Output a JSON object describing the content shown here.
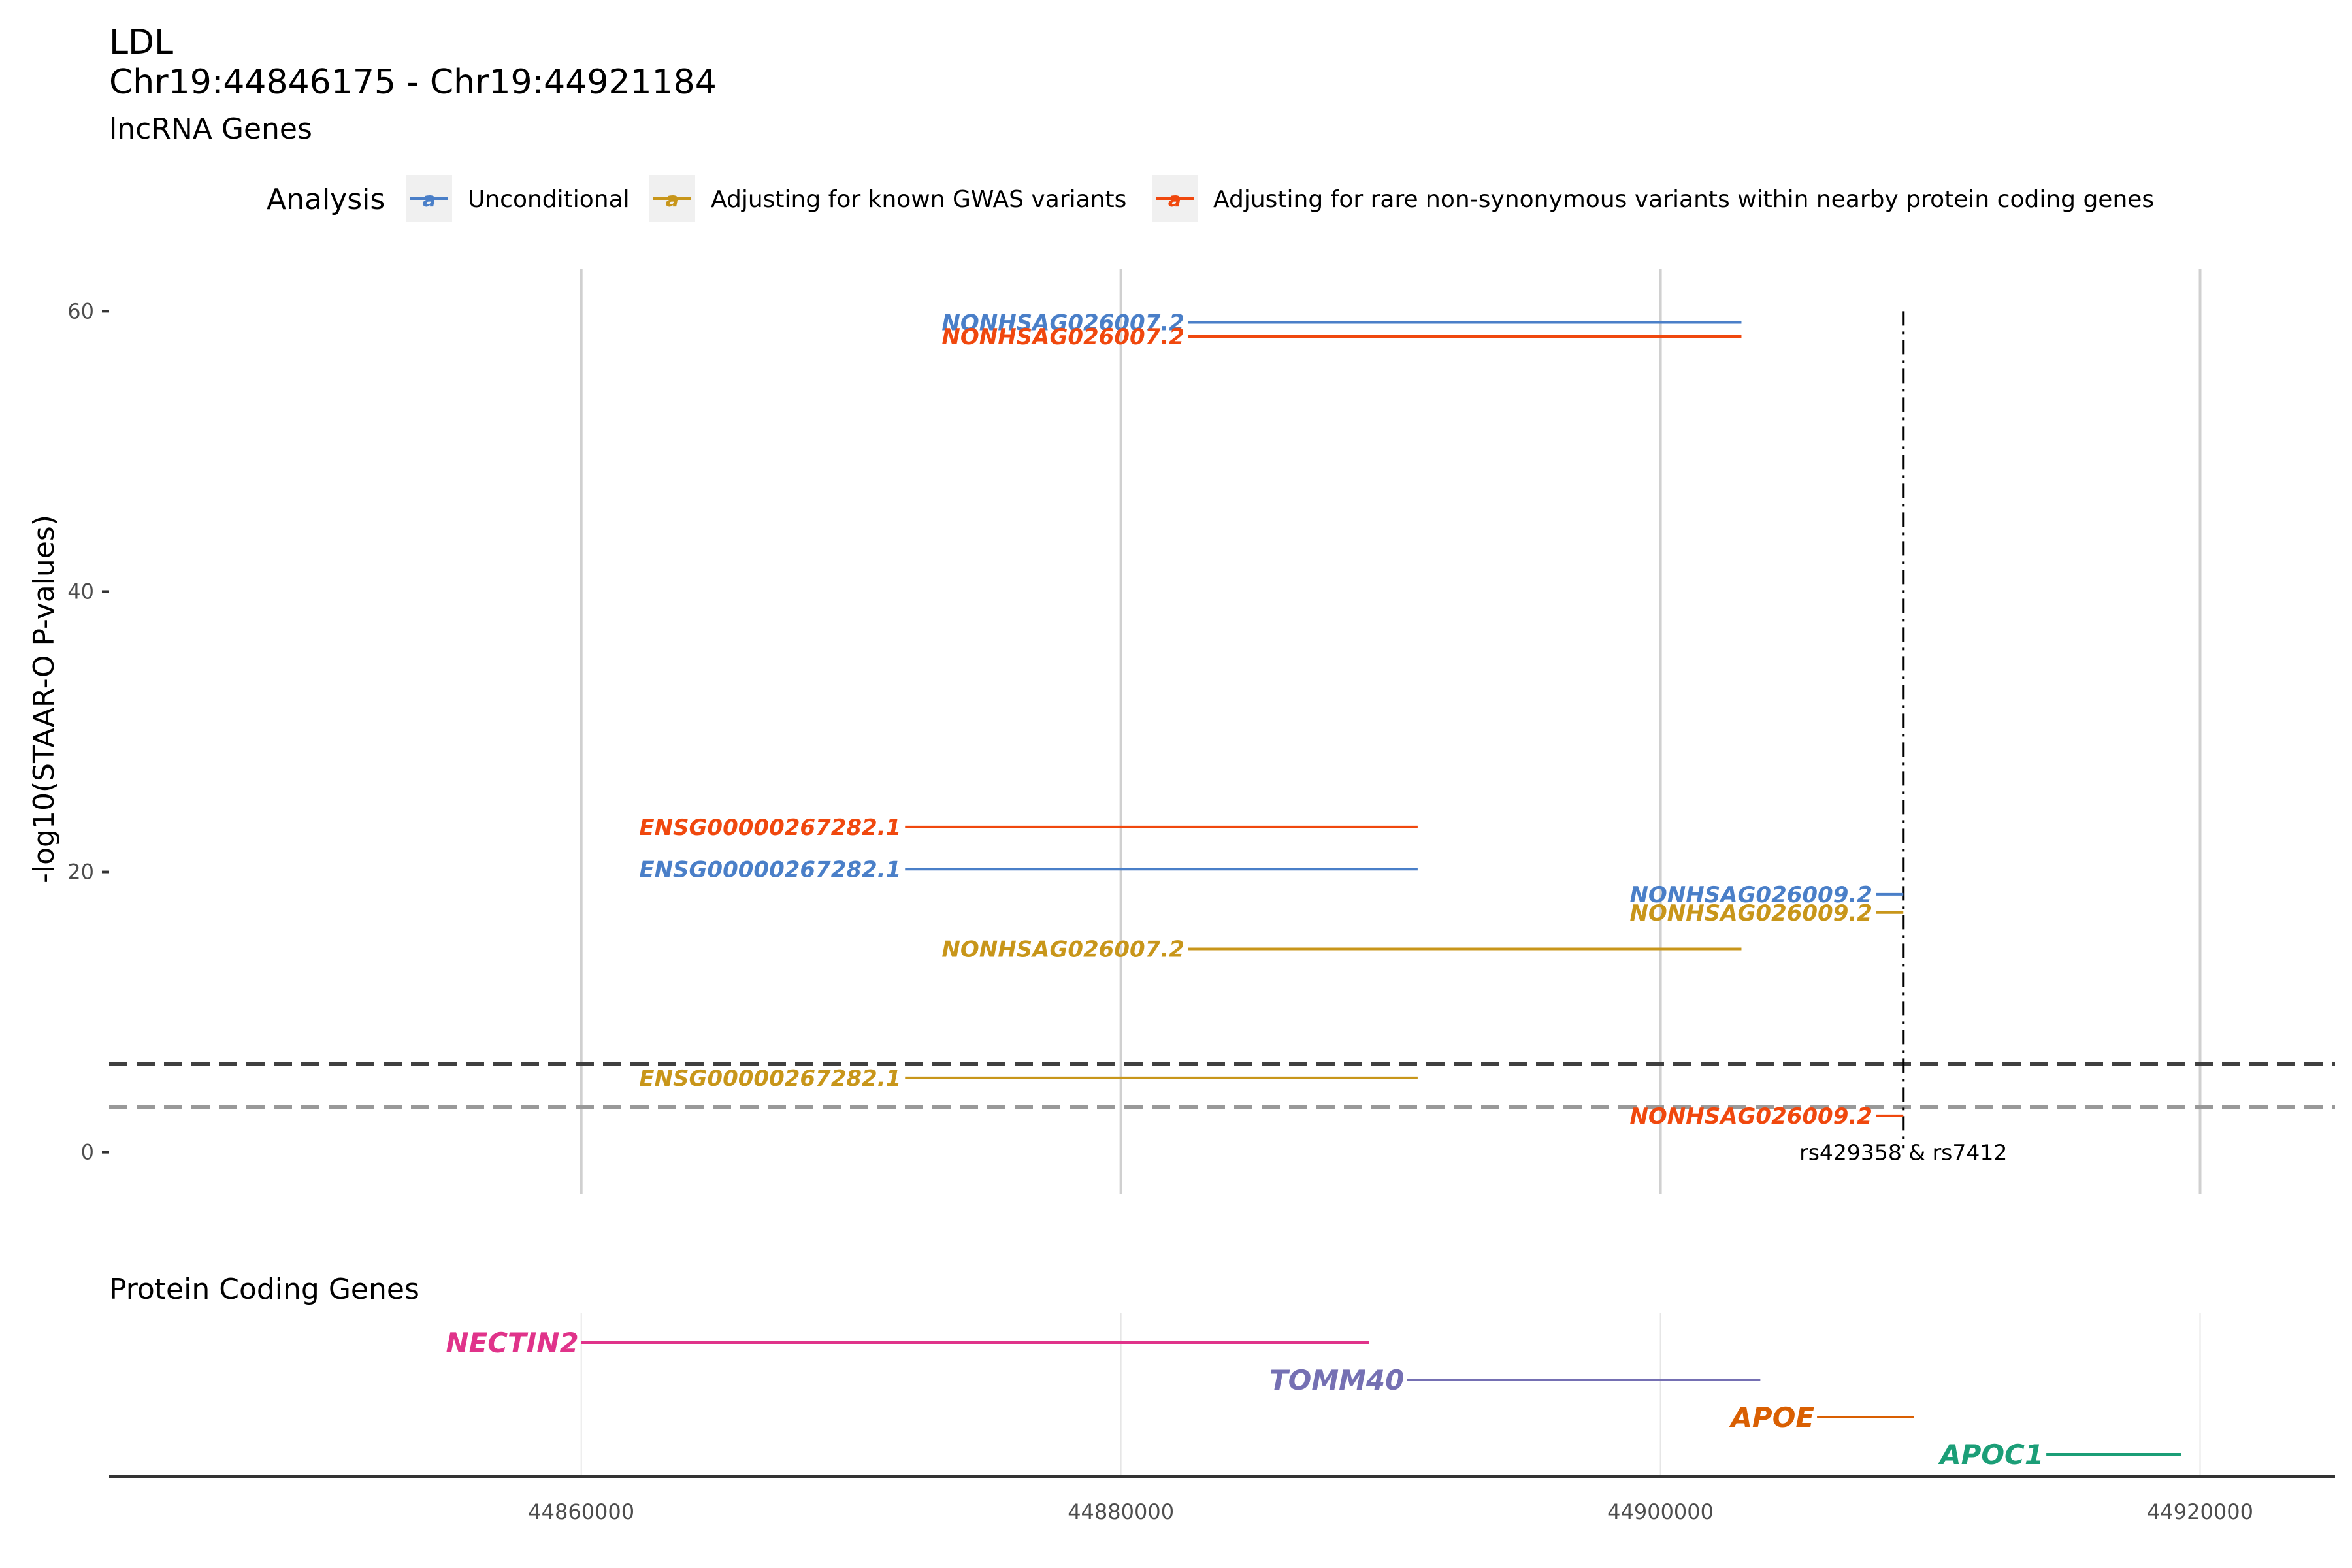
{
  "header": {
    "trait": "LDL",
    "region": "Chr19:44846175 - Chr19:44921184",
    "panel_title": "lncRNA Genes"
  },
  "legend": {
    "title": "Analysis",
    "key_glyph": "a",
    "items": [
      {
        "label": "Unconditional",
        "color": "#4A7FC8"
      },
      {
        "label": "Adjusting for known GWAS variants",
        "color": "#C8961A"
      },
      {
        "label": "Adjusting for rare non-synonymous variants within nearby protein coding genes",
        "color": "#F0480E"
      }
    ]
  },
  "chart_data": [
    {
      "type": "segment",
      "panel": "lncRNA Genes",
      "ylabel": "-log10(STAAR-O P-values)",
      "ylim": [
        -3,
        63
      ],
      "xlim": [
        44842500,
        44925000
      ],
      "y_ticks": [
        0,
        20,
        40,
        60
      ],
      "x_gridlines": [
        44860000,
        44880000,
        44900000,
        44920000
      ],
      "grid": "vertical-major",
      "thresholds": [
        {
          "y": 6.3,
          "style": "dashed",
          "color": "#404040"
        },
        {
          "y": 3.2,
          "style": "dashed",
          "color": "#999999"
        }
      ],
      "marker": {
        "x": 44909000,
        "label": "rs429358 & rs7412",
        "style": "dotdash"
      },
      "segments": [
        {
          "gene": "NONHSAG026007.2",
          "series": "Unconditional",
          "x_start": 44882500,
          "x_end": 44903000,
          "y": 59.2,
          "label_side": "left"
        },
        {
          "gene": "NONHSAG026007.2",
          "series": "Adjusting for rare non-synonymous variants within nearby protein coding genes",
          "x_start": 44882500,
          "x_end": 44903000,
          "y": 58.2,
          "label_side": "left"
        },
        {
          "gene": "ENSG00000267282.1",
          "series": "Adjusting for rare non-synonymous variants within nearby protein coding genes",
          "x_start": 44872000,
          "x_end": 44891000,
          "y": 23.2,
          "label_side": "left"
        },
        {
          "gene": "ENSG00000267282.1",
          "series": "Unconditional",
          "x_start": 44872000,
          "x_end": 44891000,
          "y": 20.2,
          "label_side": "left"
        },
        {
          "gene": "NONHSAG026009.2",
          "series": "Unconditional",
          "x_start": 44908000,
          "x_end": 44909000,
          "y": 18.4,
          "label_side": "left"
        },
        {
          "gene": "NONHSAG026009.2",
          "series": "Adjusting for known GWAS variants",
          "x_start": 44908000,
          "x_end": 44909000,
          "y": 17.1,
          "label_side": "left"
        },
        {
          "gene": "NONHSAG026007.2",
          "series": "Adjusting for known GWAS variants",
          "x_start": 44882500,
          "x_end": 44903000,
          "y": 14.5,
          "label_side": "left"
        },
        {
          "gene": "ENSG00000267282.1",
          "series": "Adjusting for known GWAS variants",
          "x_start": 44872000,
          "x_end": 44891000,
          "y": 5.3,
          "label_side": "left"
        },
        {
          "gene": "NONHSAG026009.2",
          "series": "Adjusting for rare non-synonymous variants within nearby protein coding genes",
          "x_start": 44908000,
          "x_end": 44909000,
          "y": 2.6,
          "label_side": "left"
        }
      ]
    },
    {
      "type": "segment",
      "panel": "Protein Coding Genes",
      "x_ticks": [
        44860000,
        44880000,
        44900000,
        44920000
      ],
      "genes": [
        {
          "name": "NECTIN2",
          "x_start": 44860000,
          "x_end": 44889200,
          "color": "#E0338A"
        },
        {
          "name": "TOMM40",
          "x_start": 44890600,
          "x_end": 44903700,
          "color": "#7570B3"
        },
        {
          "name": "APOE",
          "x_start": 44905800,
          "x_end": 44909400,
          "color": "#D95F02"
        },
        {
          "name": "APOC1",
          "x_start": 44914300,
          "x_end": 44919300,
          "color": "#1B9E77"
        }
      ]
    }
  ]
}
